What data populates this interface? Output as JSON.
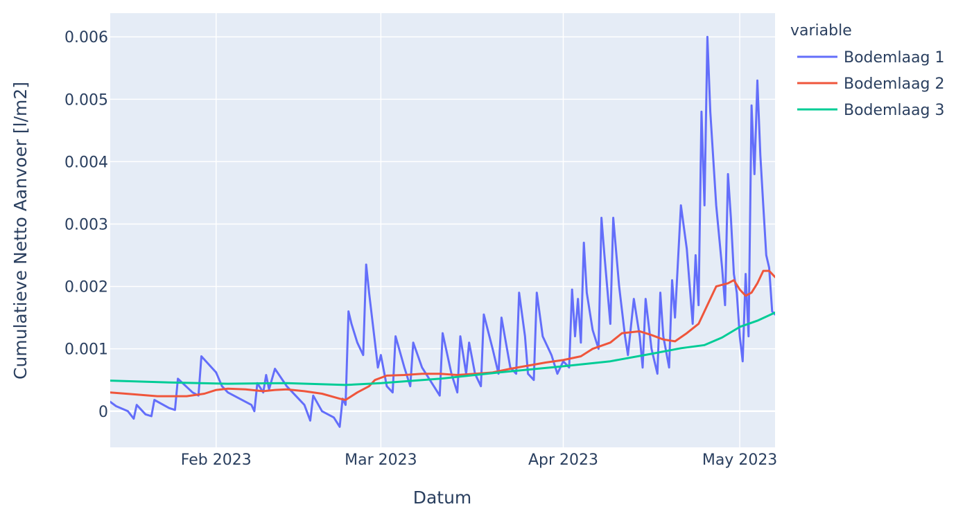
{
  "chart_data": {
    "type": "line",
    "xlabel": "Datum",
    "ylabel": "Cumulatieve Netto Aanvoer [l/m2]",
    "xlim": [
      "2023-01-14",
      "2023-05-07"
    ],
    "ylim": [
      -0.00058,
      0.00638
    ],
    "grid": true,
    "x_ticks": [
      {
        "date": "2023-02-01",
        "label": "Feb 2023"
      },
      {
        "date": "2023-03-01",
        "label": "Mar 2023"
      },
      {
        "date": "2023-04-01",
        "label": "Apr 2023"
      },
      {
        "date": "2023-05-01",
        "label": "May 2023"
      }
    ],
    "y_ticks": [
      {
        "value": 0,
        "label": "0"
      },
      {
        "value": 0.001,
        "label": "0.001"
      },
      {
        "value": 0.002,
        "label": "0.002"
      },
      {
        "value": 0.003,
        "label": "0.003"
      },
      {
        "value": 0.004,
        "label": "0.004"
      },
      {
        "value": 0.005,
        "label": "0.005"
      },
      {
        "value": 0.006,
        "label": "0.006"
      }
    ],
    "legend": {
      "title": "variable",
      "position": "right-top"
    },
    "series": [
      {
        "name": "Bodemlaag 1",
        "color": "#636efa",
        "points": [
          [
            "2023-01-14",
            0.00015
          ],
          [
            "2023-01-15",
            8e-05
          ],
          [
            "2023-01-17",
            0.0
          ],
          [
            "2023-01-18",
            -0.00012
          ],
          [
            "2023-01-18.5",
            0.0001
          ],
          [
            "2023-01-20",
            -5e-05
          ],
          [
            "2023-01-21",
            -8e-05
          ],
          [
            "2023-01-21.5",
            0.00018
          ],
          [
            "2023-01-24",
            5e-05
          ],
          [
            "2023-01-25",
            2e-05
          ],
          [
            "2023-01-25.5",
            0.00052
          ],
          [
            "2023-01-28",
            0.0003
          ],
          [
            "2023-01-29",
            0.00025
          ],
          [
            "2023-01-29.5",
            0.00088
          ],
          [
            "2023-02-01",
            0.00062
          ],
          [
            "2023-02-02",
            0.0004
          ],
          [
            "2023-02-03",
            0.0003
          ],
          [
            "2023-02-06",
            0.00015
          ],
          [
            "2023-02-07",
            0.0001
          ],
          [
            "2023-02-07.5",
            0.0
          ],
          [
            "2023-02-08",
            0.00045
          ],
          [
            "2023-02-09",
            0.0003
          ],
          [
            "2023-02-09.5",
            0.00058
          ],
          [
            "2023-02-10",
            0.00035
          ],
          [
            "2023-02-11",
            0.00068
          ],
          [
            "2023-02-13",
            0.0004
          ],
          [
            "2023-02-15",
            0.0002
          ],
          [
            "2023-02-16",
            0.0001
          ],
          [
            "2023-02-17",
            -0.00015
          ],
          [
            "2023-02-17.5",
            0.00025
          ],
          [
            "2023-02-19",
            0.0
          ],
          [
            "2023-02-21",
            -0.0001
          ],
          [
            "2023-02-22",
            -0.00025
          ],
          [
            "2023-02-22.5",
            0.0002
          ],
          [
            "2023-02-23",
            0.0001
          ],
          [
            "2023-02-23.5",
            0.0016
          ],
          [
            "2023-02-24",
            0.0014
          ],
          [
            "2023-02-25",
            0.0011
          ],
          [
            "2023-02-26",
            0.0009
          ],
          [
            "2023-02-26.5",
            0.00235
          ],
          [
            "2023-02-27",
            0.0019
          ],
          [
            "2023-02-28",
            0.0011
          ],
          [
            "2023-02-28.5",
            0.0007
          ],
          [
            "2023-03-01",
            0.0009
          ],
          [
            "2023-03-02",
            0.0004
          ],
          [
            "2023-03-03",
            0.0003
          ],
          [
            "2023-03-03.5",
            0.0012
          ],
          [
            "2023-03-05",
            0.0007
          ],
          [
            "2023-03-06",
            0.0004
          ],
          [
            "2023-03-06.5",
            0.0011
          ],
          [
            "2023-03-08",
            0.0007
          ],
          [
            "2023-03-10",
            0.0004
          ],
          [
            "2023-03-11",
            0.00025
          ],
          [
            "2023-03-11.5",
            0.00125
          ],
          [
            "2023-03-13",
            0.0006
          ],
          [
            "2023-03-14",
            0.0003
          ],
          [
            "2023-03-14.5",
            0.0012
          ],
          [
            "2023-03-15.5",
            0.0006
          ],
          [
            "2023-03-16",
            0.0011
          ],
          [
            "2023-03-17",
            0.0006
          ],
          [
            "2023-03-18",
            0.0004
          ],
          [
            "2023-03-18.5",
            0.00155
          ],
          [
            "2023-03-20",
            0.001
          ],
          [
            "2023-03-21",
            0.0006
          ],
          [
            "2023-03-21.5",
            0.0015
          ],
          [
            "2023-03-23",
            0.0007
          ],
          [
            "2023-03-24",
            0.0006
          ],
          [
            "2023-03-24.5",
            0.0019
          ],
          [
            "2023-03-25.5",
            0.0012
          ],
          [
            "2023-03-26",
            0.0006
          ],
          [
            "2023-03-27",
            0.0005
          ],
          [
            "2023-03-27.5",
            0.0019
          ],
          [
            "2023-03-28.5",
            0.0012
          ],
          [
            "2023-03-30",
            0.0009
          ],
          [
            "2023-03-31",
            0.0006
          ],
          [
            "2023-04-01",
            0.0008
          ],
          [
            "2023-04-02",
            0.0007
          ],
          [
            "2023-04-02.5",
            0.00195
          ],
          [
            "2023-04-03",
            0.0012
          ],
          [
            "2023-04-03.5",
            0.0018
          ],
          [
            "2023-04-04",
            0.0011
          ],
          [
            "2023-04-04.5",
            0.0027
          ],
          [
            "2023-04-05",
            0.0019
          ],
          [
            "2023-04-06",
            0.0013
          ],
          [
            "2023-04-07",
            0.001
          ],
          [
            "2023-04-07.5",
            0.0031
          ],
          [
            "2023-04-08",
            0.0025
          ],
          [
            "2023-04-09",
            0.0014
          ],
          [
            "2023-04-09.5",
            0.0031
          ],
          [
            "2023-04-10.5",
            0.002
          ],
          [
            "2023-04-11.5",
            0.0012
          ],
          [
            "2023-04-12",
            0.0009
          ],
          [
            "2023-04-13",
            0.0018
          ],
          [
            "2023-04-14",
            0.0012
          ],
          [
            "2023-04-14.5",
            0.0007
          ],
          [
            "2023-04-15",
            0.0018
          ],
          [
            "2023-04-16",
            0.001
          ],
          [
            "2023-04-17",
            0.0006
          ],
          [
            "2023-04-17.5",
            0.0019
          ],
          [
            "2023-04-18",
            0.0012
          ],
          [
            "2023-04-19",
            0.0007
          ],
          [
            "2023-04-19.5",
            0.0021
          ],
          [
            "2023-04-20",
            0.0015
          ],
          [
            "2023-04-21",
            0.0033
          ],
          [
            "2023-04-22",
            0.0026
          ],
          [
            "2023-04-23",
            0.0014
          ],
          [
            "2023-04-23.5",
            0.0025
          ],
          [
            "2023-04-24",
            0.0017
          ],
          [
            "2023-04-24.5",
            0.0048
          ],
          [
            "2023-04-25",
            0.0033
          ],
          [
            "2023-04-25.5",
            0.006
          ],
          [
            "2023-04-26",
            0.0048
          ],
          [
            "2023-04-27",
            0.0033
          ],
          [
            "2023-04-28",
            0.0023
          ],
          [
            "2023-04-28.5",
            0.0017
          ],
          [
            "2023-04-29",
            0.0038
          ],
          [
            "2023-04-29.5",
            0.0031
          ],
          [
            "2023-04-30",
            0.0022
          ],
          [
            "2023-04-30.5",
            0.0019
          ],
          [
            "2023-05-01",
            0.0012
          ],
          [
            "2023-05-01.5",
            0.0008
          ],
          [
            "2023-05-02",
            0.0022
          ],
          [
            "2023-05-02.5",
            0.0012
          ],
          [
            "2023-05-03",
            0.0049
          ],
          [
            "2023-05-03.5",
            0.0038
          ],
          [
            "2023-05-04",
            0.0053
          ],
          [
            "2023-05-04.5",
            0.0041
          ],
          [
            "2023-05-05",
            0.0033
          ],
          [
            "2023-05-05.5",
            0.0025
          ],
          [
            "2023-05-06",
            0.0023
          ],
          [
            "2023-05-06.5",
            0.0016
          ],
          [
            "2023-05-07",
            0.00155
          ]
        ]
      },
      {
        "name": "Bodemlaag 2",
        "color": "#ef553b",
        "points": [
          [
            "2023-01-14",
            0.0003
          ],
          [
            "2023-01-18",
            0.00027
          ],
          [
            "2023-01-22",
            0.00024
          ],
          [
            "2023-01-27",
            0.00024
          ],
          [
            "2023-01-30",
            0.00028
          ],
          [
            "2023-02-01",
            0.00034
          ],
          [
            "2023-02-03",
            0.00036
          ],
          [
            "2023-02-06",
            0.00035
          ],
          [
            "2023-02-09",
            0.00032
          ],
          [
            "2023-02-11",
            0.00034
          ],
          [
            "2023-02-13",
            0.00035
          ],
          [
            "2023-02-16",
            0.00032
          ],
          [
            "2023-02-19",
            0.00028
          ],
          [
            "2023-02-22",
            0.0002
          ],
          [
            "2023-02-23",
            0.00018
          ],
          [
            "2023-02-25",
            0.0003
          ],
          [
            "2023-02-27",
            0.0004
          ],
          [
            "2023-02-28",
            0.0005
          ],
          [
            "2023-03-02",
            0.00057
          ],
          [
            "2023-03-05",
            0.00058
          ],
          [
            "2023-03-08",
            0.0006
          ],
          [
            "2023-03-11",
            0.0006
          ],
          [
            "2023-03-14",
            0.00058
          ],
          [
            "2023-03-17",
            0.0006
          ],
          [
            "2023-03-20",
            0.00062
          ],
          [
            "2023-03-23",
            0.00068
          ],
          [
            "2023-03-26",
            0.00073
          ],
          [
            "2023-03-29",
            0.00078
          ],
          [
            "2023-04-01",
            0.00082
          ],
          [
            "2023-04-04",
            0.00088
          ],
          [
            "2023-04-06",
            0.001
          ],
          [
            "2023-04-09",
            0.0011
          ],
          [
            "2023-04-11",
            0.00125
          ],
          [
            "2023-04-14",
            0.00128
          ],
          [
            "2023-04-16",
            0.00122
          ],
          [
            "2023-04-18",
            0.00115
          ],
          [
            "2023-04-20",
            0.00112
          ],
          [
            "2023-04-22",
            0.00125
          ],
          [
            "2023-04-24",
            0.0014
          ],
          [
            "2023-04-26",
            0.0018
          ],
          [
            "2023-04-27",
            0.002
          ],
          [
            "2023-04-29",
            0.00205
          ],
          [
            "2023-04-30",
            0.0021
          ],
          [
            "2023-05-01",
            0.00195
          ],
          [
            "2023-05-02",
            0.00185
          ],
          [
            "2023-05-03",
            0.0019
          ],
          [
            "2023-05-04",
            0.00205
          ],
          [
            "2023-05-05",
            0.00225
          ],
          [
            "2023-05-06",
            0.00225
          ],
          [
            "2023-05-07",
            0.00215
          ]
        ]
      },
      {
        "name": "Bodemlaag 3",
        "color": "#00cc96",
        "points": [
          [
            "2023-01-14",
            0.00049
          ],
          [
            "2023-01-24",
            0.00046
          ],
          [
            "2023-02-03",
            0.00044
          ],
          [
            "2023-02-13",
            0.00045
          ],
          [
            "2023-02-23",
            0.00042
          ],
          [
            "2023-03-01",
            0.00045
          ],
          [
            "2023-03-11",
            0.00052
          ],
          [
            "2023-03-21",
            0.00062
          ],
          [
            "2023-04-01",
            0.00072
          ],
          [
            "2023-04-09",
            0.0008
          ],
          [
            "2023-04-16",
            0.00092
          ],
          [
            "2023-04-21",
            0.00101
          ],
          [
            "2023-04-25",
            0.00106
          ],
          [
            "2023-04-28",
            0.00118
          ],
          [
            "2023-05-01",
            0.00135
          ],
          [
            "2023-05-04",
            0.00145
          ],
          [
            "2023-05-07",
            0.00158
          ]
        ]
      }
    ]
  }
}
